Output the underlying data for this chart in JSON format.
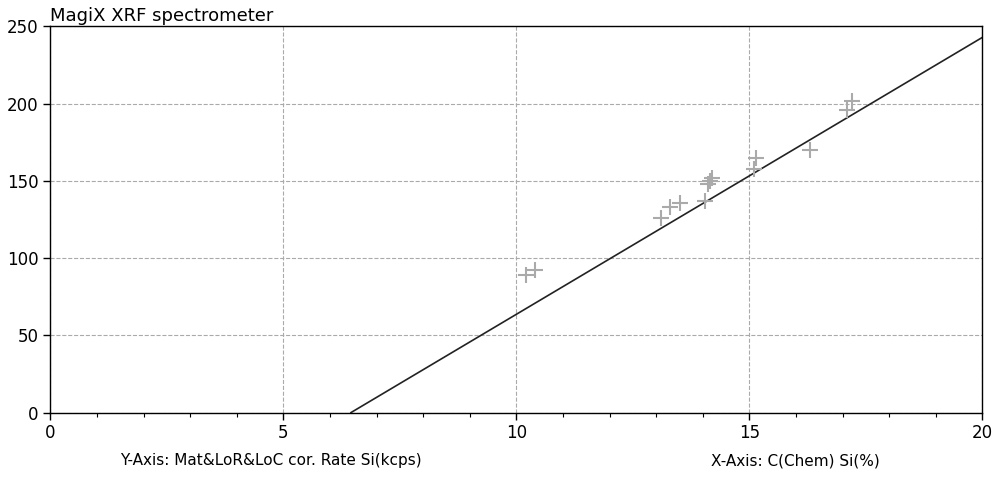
{
  "title": "MagiX XRF spectrometer",
  "ylabel_left": "Y-Axis: Mat&LoR&LoC cor. Rate Si(kcps)",
  "ylabel_right": "X-Axis: C(Chem) Si(%)",
  "xlim": [
    0,
    20
  ],
  "ylim": [
    0,
    250
  ],
  "xticks": [
    0,
    5,
    10,
    15,
    20
  ],
  "yticks": [
    0,
    50,
    100,
    150,
    200,
    250
  ],
  "line_x": [
    6.45,
    20.0
  ],
  "line_y": [
    0,
    243
  ],
  "data_points": [
    [
      10.2,
      89
    ],
    [
      10.4,
      92
    ],
    [
      13.1,
      126
    ],
    [
      13.3,
      133
    ],
    [
      13.5,
      136
    ],
    [
      14.05,
      137
    ],
    [
      14.1,
      148
    ],
    [
      14.15,
      150
    ],
    [
      14.2,
      152
    ],
    [
      15.1,
      158
    ],
    [
      15.15,
      165
    ],
    [
      16.3,
      170
    ],
    [
      17.1,
      196
    ],
    [
      17.2,
      202
    ]
  ],
  "grid_color": "#aaaaaa",
  "line_color": "#222222",
  "marker_color": "#aaaaaa",
  "background_color": "#ffffff",
  "title_fontsize": 13,
  "label_fontsize": 11,
  "tick_fontsize": 12
}
